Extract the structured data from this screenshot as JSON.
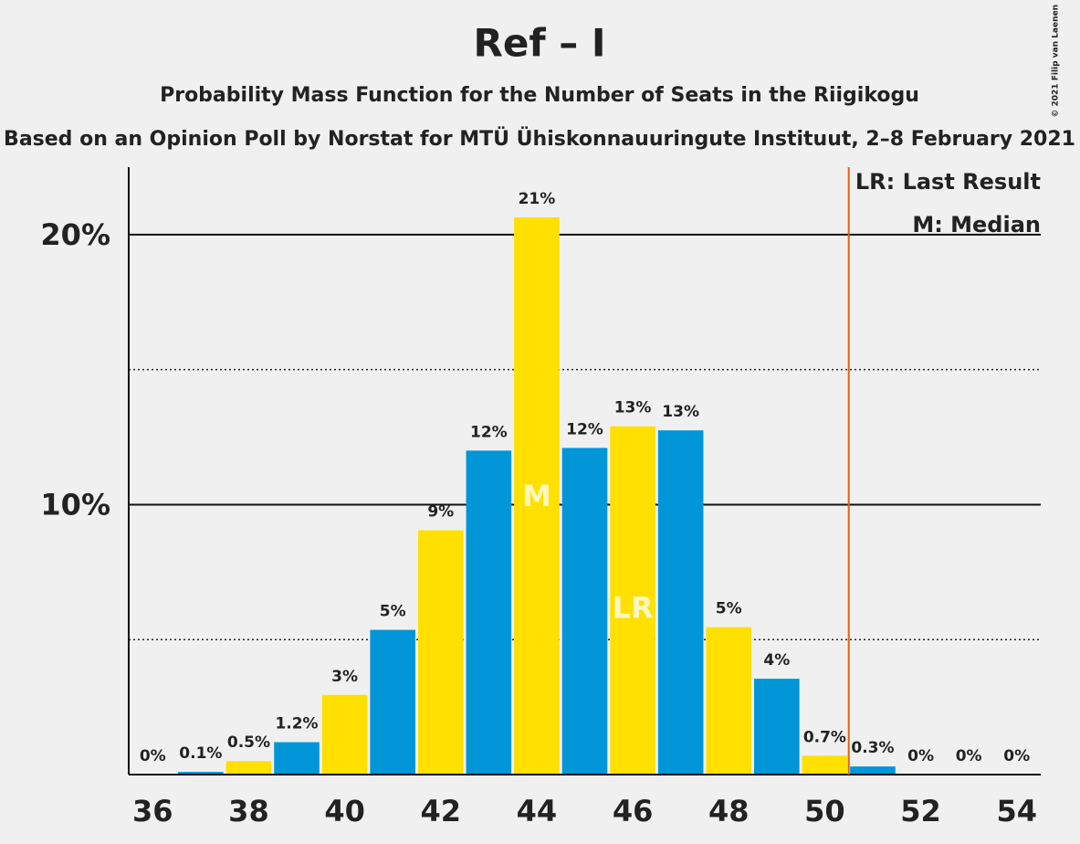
{
  "chart_data": {
    "type": "bar",
    "title": "Ref – I",
    "subtitle": "Probability Mass Function for the Number of Seats in the Riigikogu",
    "caption": "Based on an Opinion Poll by Norstat for MTÜ Ühiskonnauuringute Instituut, 2–8 February 2021",
    "copyright": "© 2021 Filip van Laenen",
    "x": [
      36,
      37,
      38,
      39,
      40,
      41,
      42,
      43,
      44,
      45,
      46,
      47,
      48,
      49,
      50,
      51,
      52,
      53,
      54
    ],
    "values": [
      0,
      0.1,
      0.5,
      1.2,
      2.95,
      5.36,
      9.05,
      12.0,
      20.64,
      12.1,
      12.9,
      12.75,
      5.46,
      3.55,
      0.7,
      0.3,
      0,
      0,
      0
    ],
    "value_labels": [
      "0%",
      "0.1%",
      "0.5%",
      "1.2%",
      "3%",
      "5%",
      "9%",
      "12%",
      "21%",
      "12%",
      "13%",
      "13%",
      "5%",
      "4%",
      "0.7%",
      "0.3%",
      "0%",
      "0%",
      "0%"
    ],
    "colors": [
      "#0096d8",
      "#0096d8",
      "#ffe000",
      "#0096d8",
      "#ffe000",
      "#0096d8",
      "#ffe000",
      "#0096d8",
      "#ffe000",
      "#0096d8",
      "#ffe000",
      "#0096d8",
      "#ffe000",
      "#0096d8",
      "#ffe000",
      "#0096d8",
      "#ffe000",
      "#0096d8",
      "#ffe000"
    ],
    "xlim": [
      35.5,
      54.5
    ],
    "xticks": [
      36,
      38,
      40,
      42,
      44,
      46,
      48,
      50,
      52,
      54
    ],
    "ylim": [
      0,
      22.5
    ],
    "yticks": [
      {
        "value": 10,
        "label": "10%"
      },
      {
        "value": 20,
        "label": "20%"
      }
    ],
    "minor_yticks": [
      5,
      15
    ],
    "threshold": 50.5,
    "threshold_color": "#e06010",
    "median": 44,
    "median_label": "M",
    "last_result": 46,
    "last_result_label": "LR",
    "legend": [
      "LR: Last Result",
      "M: Median"
    ]
  }
}
